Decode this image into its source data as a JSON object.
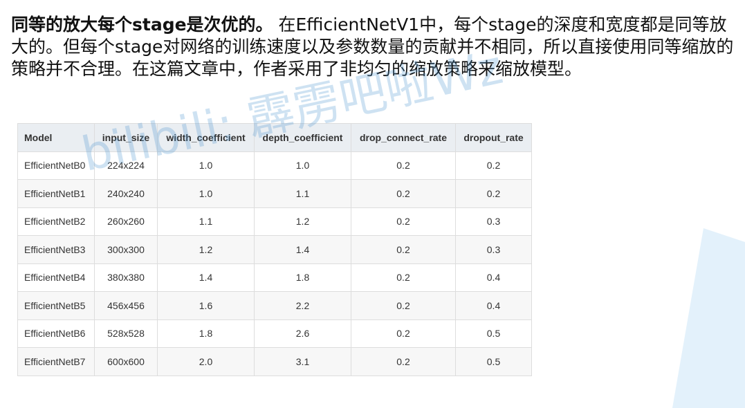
{
  "intro": {
    "lead": "同等的放大每个stage是次优的。",
    "body": " 在EfficientNetV1中，每个stage的深度和宽度都是同等放大的。但每个stage对网络的训练速度以及参数数量的贡献并不相同，所以直接使用同等缩放的策略并不合理。在这篇文章中，作者采用了非均匀的缩放策略来缩放模型。"
  },
  "table": {
    "headers": [
      "Model",
      "input_size",
      "width_coefficient",
      "depth_coefficient",
      "drop_connect_rate",
      "dropout_rate"
    ],
    "rows": [
      [
        "EfficientNetB0",
        "224x224",
        "1.0",
        "1.0",
        "0.2",
        "0.2"
      ],
      [
        "EfficientNetB1",
        "240x240",
        "1.0",
        "1.1",
        "0.2",
        "0.2"
      ],
      [
        "EfficientNetB2",
        "260x260",
        "1.1",
        "1.2",
        "0.2",
        "0.3"
      ],
      [
        "EfficientNetB3",
        "300x300",
        "1.2",
        "1.4",
        "0.2",
        "0.3"
      ],
      [
        "EfficientNetB4",
        "380x380",
        "1.4",
        "1.8",
        "0.2",
        "0.4"
      ],
      [
        "EfficientNetB5",
        "456x456",
        "1.6",
        "2.2",
        "0.2",
        "0.4"
      ],
      [
        "EfficientNetB6",
        "528x528",
        "1.8",
        "2.6",
        "0.2",
        "0.5"
      ],
      [
        "EfficientNetB7",
        "600x600",
        "2.0",
        "3.1",
        "0.2",
        "0.5"
      ]
    ]
  },
  "watermark": {
    "text": "bilibili: 霹雳吧啦Wz"
  },
  "colors": {
    "header_bg": "#eaeef2",
    "watermark": "#5096d2",
    "corner_accent": "#e3f1fb"
  }
}
